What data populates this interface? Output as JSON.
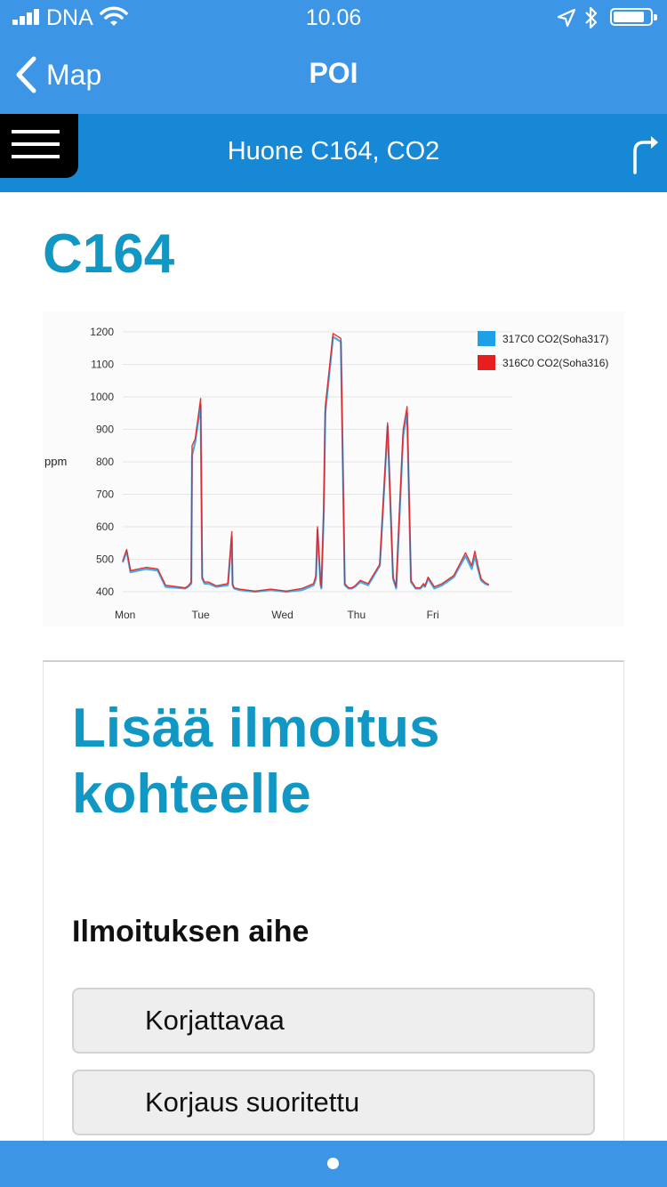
{
  "status_bar": {
    "carrier": "DNA",
    "time": "10.06",
    "icons": [
      "signal-icon",
      "wifi-icon",
      "location-icon",
      "bluetooth-icon",
      "battery-icon"
    ]
  },
  "nav": {
    "back_label": "Map",
    "title": "POI"
  },
  "subheader": {
    "title": "Huone C164, CO2",
    "icons": [
      "hamburger-menu-icon",
      "route-icon"
    ]
  },
  "room": {
    "title": "C164"
  },
  "chart_data": {
    "type": "line",
    "ylabel": "ppm",
    "xlabel": "",
    "ylim": [
      400,
      1200
    ],
    "yticks": [
      400,
      500,
      600,
      700,
      800,
      900,
      1000,
      1100,
      1200
    ],
    "xticks": [
      "Mon",
      "Tue",
      "Wed",
      "Thu",
      "Fri"
    ],
    "legend_position": "top-right",
    "grid": true,
    "x": [
      0,
      0.05,
      0.1,
      0.3,
      0.45,
      0.55,
      0.8,
      0.84,
      0.88,
      0.89,
      0.93,
      1.0,
      1.02,
      1.05,
      1.1,
      1.2,
      1.35,
      1.4,
      1.41,
      1.43,
      1.5,
      1.7,
      1.9,
      2.1,
      2.3,
      2.45,
      2.48,
      2.5,
      2.54,
      2.55,
      2.58,
      2.6,
      2.7,
      2.8,
      2.85,
      2.9,
      2.94,
      2.98,
      3.05,
      3.15,
      3.3,
      3.4,
      3.47,
      3.51,
      3.55,
      3.6,
      3.65,
      3.7,
      3.76,
      3.82,
      3.86,
      3.88,
      3.92,
      4.0,
      4.1,
      4.25,
      4.4,
      4.48,
      4.52,
      4.56,
      4.6,
      4.65,
      4.7
    ],
    "series": [
      {
        "name": "317C0 CO2(Soha317)",
        "color": "#1ea0e6",
        "values": [
          490,
          525,
          460,
          470,
          465,
          415,
          410,
          415,
          425,
          820,
          860,
          975,
          440,
          425,
          425,
          415,
          420,
          570,
          420,
          410,
          405,
          400,
          405,
          400,
          405,
          420,
          440,
          590,
          420,
          410,
          640,
          950,
          1185,
          1170,
          420,
          410,
          410,
          415,
          430,
          420,
          480,
          910,
          440,
          410,
          620,
          880,
          950,
          430,
          410,
          410,
          420,
          415,
          440,
          410,
          420,
          445,
          510,
          470,
          510,
          470,
          435,
          425,
          420
        ]
      },
      {
        "name": "316C0 CO2(Soha316)",
        "color": "#e81e1e",
        "values": [
          495,
          530,
          465,
          475,
          470,
          420,
          412,
          418,
          430,
          850,
          870,
          995,
          445,
          430,
          430,
          418,
          425,
          585,
          425,
          412,
          408,
          402,
          408,
          402,
          410,
          425,
          450,
          600,
          425,
          415,
          660,
          970,
          1195,
          1180,
          425,
          412,
          412,
          418,
          435,
          425,
          485,
          920,
          445,
          415,
          640,
          900,
          970,
          435,
          412,
          412,
          425,
          418,
          445,
          415,
          425,
          450,
          520,
          480,
          525,
          480,
          440,
          428,
          422
        ]
      }
    ]
  },
  "report": {
    "title_line1": "Lisää ilmoitus",
    "title_line2": "kohteelle",
    "topic_label": "Ilmoituksen aihe",
    "options": [
      "Korjattavaa",
      "Korjaus suoritettu"
    ]
  },
  "colors": {
    "nav_bar": "#3d95e6",
    "subheader": "#1788d6",
    "heading_accent": "#1097c4"
  }
}
